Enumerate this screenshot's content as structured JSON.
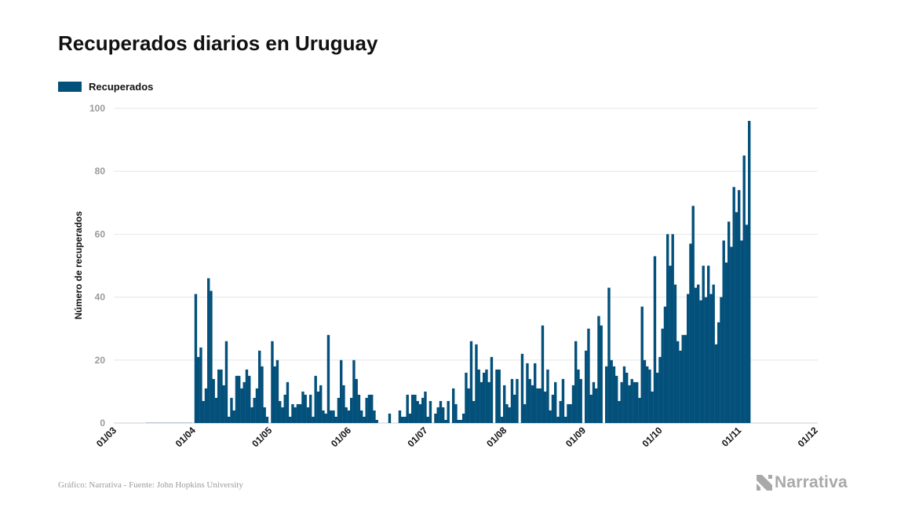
{
  "chart_data": {
    "type": "bar",
    "title": "Recuperados diarios en Uruguay",
    "ylabel": "Número de recuperados",
    "xlabel": "",
    "legend": {
      "position": "top-left",
      "entries": [
        "Recuperados"
      ]
    },
    "ylim": [
      0,
      100
    ],
    "yticks": [
      "0",
      "20",
      "40",
      "60",
      "80",
      "100"
    ],
    "xticks": [
      "01/03",
      "01/04",
      "01/05",
      "01/06",
      "01/07",
      "01/08",
      "01/09",
      "01/10",
      "01/11",
      "01/12"
    ],
    "grid": true,
    "start_date": "2020-03-01",
    "series": [
      {
        "name": "Recuperados",
        "color": "#03507a",
        "values": [
          0,
          0,
          0,
          0,
          0,
          0,
          0,
          0,
          0,
          0,
          0,
          0,
          0,
          0,
          0,
          0,
          0,
          0,
          0,
          0,
          0,
          0,
          0,
          0,
          0,
          0,
          0,
          0,
          0,
          0,
          0,
          41,
          21,
          24,
          7,
          11,
          46,
          42,
          14,
          8,
          17,
          17,
          12,
          26,
          2,
          8,
          4,
          15,
          15,
          11,
          13,
          17,
          15,
          5,
          8,
          11,
          23,
          18,
          5,
          2,
          0,
          26,
          18,
          20,
          7,
          5,
          9,
          13,
          2,
          6,
          5,
          6,
          6,
          10,
          9,
          5,
          9,
          2,
          15,
          10,
          12,
          4,
          3,
          28,
          4,
          4,
          2,
          8,
          20,
          12,
          5,
          4,
          8,
          20,
          14,
          9,
          4,
          2,
          8,
          9,
          9,
          4,
          1,
          0,
          0,
          0,
          0,
          3,
          0,
          0,
          0,
          4,
          2,
          2,
          9,
          3,
          9,
          9,
          7,
          6,
          8,
          10,
          2,
          7,
          0,
          3,
          5,
          7,
          5,
          1,
          7,
          0,
          11,
          6,
          1,
          1,
          3,
          16,
          11,
          26,
          7,
          25,
          17,
          13,
          16,
          17,
          13,
          21,
          0,
          17,
          17,
          2,
          12,
          6,
          5,
          14,
          9,
          14,
          0,
          22,
          6,
          19,
          14,
          12,
          19,
          11,
          11,
          31,
          10,
          17,
          4,
          9,
          13,
          2,
          7,
          14,
          2,
          6,
          6,
          12,
          26,
          17,
          14,
          0,
          23,
          30,
          9,
          13,
          11,
          34,
          31,
          0,
          18,
          43,
          20,
          18,
          15,
          7,
          13,
          18,
          16,
          12,
          14,
          13,
          13,
          8,
          37,
          20,
          18,
          17,
          10,
          53,
          16,
          21,
          30,
          37,
          60,
          50,
          60,
          44,
          26,
          23,
          28,
          28,
          41,
          57,
          69,
          43,
          44,
          39,
          50,
          40,
          50,
          41,
          44,
          25,
          32,
          40,
          58,
          51,
          64,
          56,
          75,
          67,
          74,
          58,
          85,
          63,
          96
        ]
      }
    ],
    "source_note": "Gráfico: Narrativa - Fuente: John Hopkins University"
  },
  "brand": {
    "name": "Narrativa"
  },
  "colors": {
    "bar": "#03507a",
    "grid": "#e6e6e6",
    "brand_gray": "#a9a9a9"
  }
}
